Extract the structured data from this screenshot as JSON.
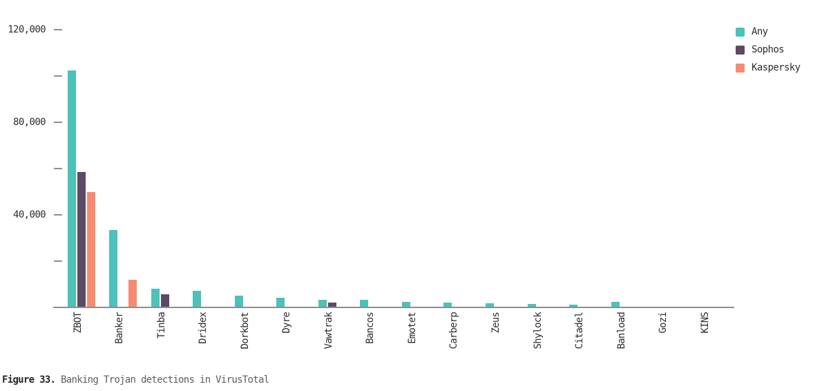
{
  "figure": {
    "caption_prefix": "Figure 33.",
    "caption_text": " Banking Trojan detections in VirusTotal"
  },
  "colors": {
    "any": "#4CC2B9",
    "sophos": "#5D4A66",
    "kaspersky": "#F58B72",
    "axis": "#8E8E8E",
    "label": "#2D2D2D",
    "caption": "#5C5C5C"
  },
  "chart_data": {
    "type": "bar",
    "title": "Banking Trojan detections in VirusTotal",
    "categories": [
      "ZBOT",
      "Banker",
      "Tinba",
      "Dridex",
      "Dorkbot",
      "Dyre",
      "Vawtrak",
      "Bancos",
      "Emotet",
      "Carberp",
      "Zeus",
      "Shylock",
      "Citadel",
      "Banload",
      "Gozi",
      "KINS"
    ],
    "series": [
      {
        "name": "Any",
        "color_key": "any",
        "values": [
          102500,
          33500,
          8200,
          7200,
          5200,
          4200,
          3200,
          3200,
          2400,
          2000,
          1800,
          1400,
          1100,
          2300,
          200,
          100
        ]
      },
      {
        "name": "Sophos",
        "color_key": "sophos",
        "values": [
          58500,
          0,
          5700,
          0,
          300,
          0,
          2200,
          0,
          0,
          0,
          0,
          0,
          0,
          0,
          0,
          0
        ]
      },
      {
        "name": "Kaspersky",
        "color_key": "kaspersky",
        "values": [
          50000,
          12000,
          0,
          0,
          0,
          0,
          0,
          0,
          0,
          0,
          0,
          0,
          0,
          300,
          0,
          0
        ]
      }
    ],
    "ylim": [
      0,
      120000
    ],
    "ytick_step": 20000,
    "yticks_labeled": [
      {
        "value": 120000,
        "label": "120,000"
      },
      {
        "value": 80000,
        "label": "80,000"
      },
      {
        "value": 40000,
        "label": "40,000"
      }
    ],
    "legend_position": "top-right",
    "grid": false,
    "xlabel": "",
    "ylabel": ""
  }
}
